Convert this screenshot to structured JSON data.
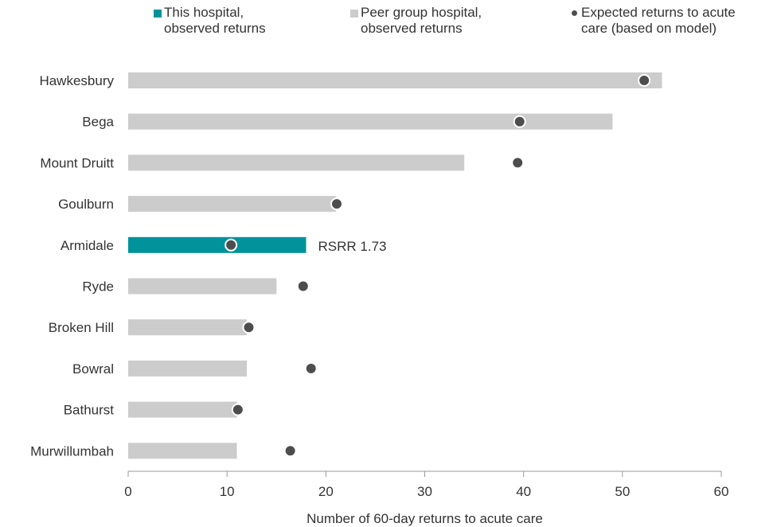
{
  "legend": {
    "this_hospital": "This hospital,\nobserved returns",
    "peer_group": "Peer group hospital,\nobserved returns",
    "expected": "Expected returns to acute\ncare (based on model)"
  },
  "colors": {
    "this_hospital": "#00939b",
    "peer_group": "#cccccc",
    "expected_marker": "#4d4d4d",
    "axis": "#999999",
    "text": "#333333"
  },
  "chart_data": {
    "type": "bar",
    "orientation": "horizontal",
    "categories": [
      "Hawkesbury",
      "Bega",
      "Mount Druitt",
      "Goulburn",
      "Armidale",
      "Ryde",
      "Broken Hill",
      "Bowral",
      "Bathurst",
      "Murwillumbah"
    ],
    "series": [
      {
        "name": "Peer group hospital, observed returns",
        "values": [
          54,
          49,
          34,
          21,
          18,
          15,
          12,
          12,
          11,
          11
        ]
      },
      {
        "name": "Expected returns to acute care (based on model)",
        "type": "scatter",
        "values": [
          52.2,
          39.6,
          39.4,
          21.1,
          10.4,
          17.7,
          12.2,
          18.5,
          11.1,
          16.4
        ]
      }
    ],
    "highlight": {
      "category": "Armidale",
      "series_name": "This hospital, observed returns",
      "label": "RSRR 1.73"
    },
    "xlabel": "Number of 60-day returns to acute care",
    "xlim": [
      0,
      60
    ],
    "xticks": [
      0,
      10,
      20,
      30,
      40,
      50,
      60
    ],
    "grid": false,
    "legend_position": "top"
  }
}
